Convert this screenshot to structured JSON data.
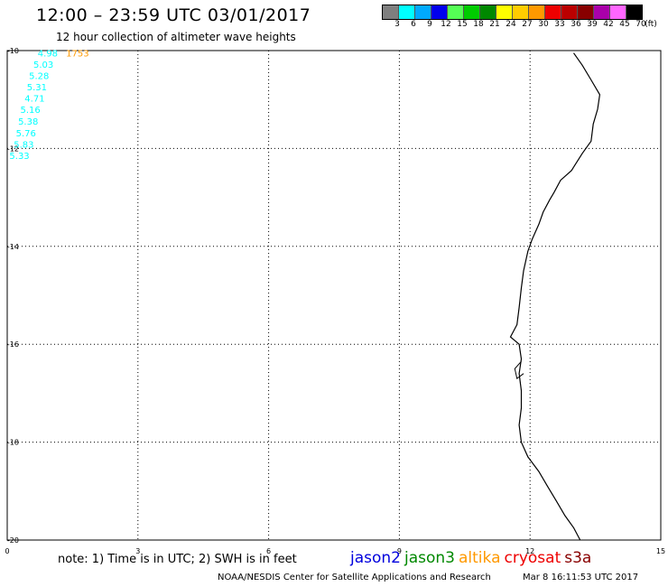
{
  "header": {
    "title": "12:00 – 23:59 UTC 03/01/2017",
    "subtitle": "12 hour collection of altimeter wave heights"
  },
  "legend": {
    "swatches": [
      {
        "color": "#7f7f7f",
        "label": "3"
      },
      {
        "color": "#00ffff",
        "label": "6"
      },
      {
        "color": "#00aaff",
        "label": "9"
      },
      {
        "color": "#0000ee",
        "label": "12"
      },
      {
        "color": "#55ff55",
        "label": "15"
      },
      {
        "color": "#00cc00",
        "label": "18"
      },
      {
        "color": "#008800",
        "label": "21"
      },
      {
        "color": "#ffff00",
        "label": "24"
      },
      {
        "color": "#ffcc00",
        "label": "27"
      },
      {
        "color": "#ff9900",
        "label": "30"
      },
      {
        "color": "#ee0000",
        "label": "33"
      },
      {
        "color": "#bb0000",
        "label": "36"
      },
      {
        "color": "#880000",
        "label": "39"
      },
      {
        "color": "#aa00aa",
        "label": "42"
      },
      {
        "color": "#ff66ff",
        "label": "45"
      },
      {
        "color": "#000000",
        "label": "70"
      }
    ],
    "unit": "(ft)"
  },
  "map": {
    "x_ticks": [
      "0",
      "3",
      "6",
      "9",
      "12",
      "15"
    ],
    "y_ticks": [
      "-10",
      "-12",
      "-14",
      "-16",
      "-18",
      "-20"
    ],
    "observations": [
      {
        "value": "4.98",
        "lat": -10.05,
        "lon": 0.7,
        "color": "#00ffff"
      },
      {
        "value": "5.03",
        "lat": -10.28,
        "lon": 0.6,
        "color": "#00ffff"
      },
      {
        "value": "5.28",
        "lat": -10.51,
        "lon": 0.5,
        "color": "#00ffff"
      },
      {
        "value": "5.31",
        "lat": -10.74,
        "lon": 0.45,
        "color": "#00ffff"
      },
      {
        "value": "4.71",
        "lat": -10.97,
        "lon": 0.4,
        "color": "#00ffff"
      },
      {
        "value": "5.16",
        "lat": -11.2,
        "lon": 0.3,
        "color": "#00ffff"
      },
      {
        "value": "5.38",
        "lat": -11.44,
        "lon": 0.25,
        "color": "#00ffff"
      },
      {
        "value": "5.76",
        "lat": -11.68,
        "lon": 0.2,
        "color": "#00ffff"
      },
      {
        "value": "5.83",
        "lat": -11.91,
        "lon": 0.15,
        "color": "#00ffff"
      },
      {
        "value": "5.33",
        "lat": -12.14,
        "lon": 0.05,
        "color": "#00ffff"
      },
      {
        "value": "1753",
        "lat": -10.05,
        "lon": 1.35,
        "color": "#ff9900"
      }
    ]
  },
  "footer": {
    "note": "note: 1) Time is in UTC; 2) SWH is in feet",
    "satellites": [
      {
        "name": "jason2",
        "color": "#0000dd"
      },
      {
        "name": "jason3",
        "color": "#008800"
      },
      {
        "name": "altika",
        "color": "#ff9900"
      },
      {
        "name": "cryosat",
        "color": "#ee0000"
      },
      {
        "name": "s3a",
        "color": "#880000"
      }
    ],
    "credit": "NOAA/NESDIS Center for Satellite Applications and Research",
    "timestamp": "Mar  8 16:11:53 UTC 2017"
  }
}
